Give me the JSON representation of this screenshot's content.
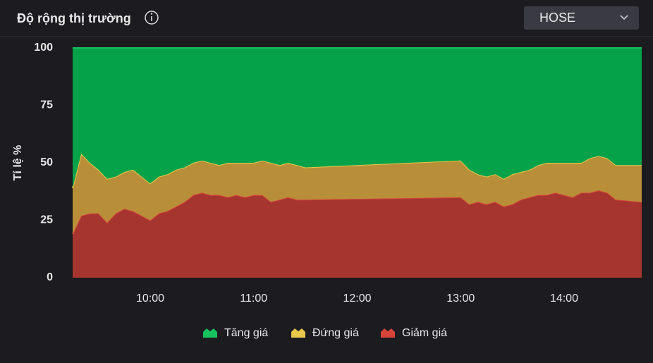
{
  "header": {
    "title": "Độ rộng thị trường",
    "exchange": "HOSE"
  },
  "chart_data": {
    "type": "stacked_area",
    "y_label": "Tỉ lệ %",
    "grid": false,
    "x": [
      "09:15",
      "09:20",
      "09:25",
      "09:30",
      "09:35",
      "09:40",
      "09:45",
      "09:50",
      "09:55",
      "10:00",
      "10:05",
      "10:10",
      "10:15",
      "10:20",
      "10:25",
      "10:30",
      "10:35",
      "10:40",
      "10:45",
      "10:50",
      "10:55",
      "11:00",
      "11:05",
      "11:10",
      "11:15",
      "11:20",
      "11:25",
      "11:30",
      "13:00",
      "13:05",
      "13:10",
      "13:15",
      "13:20",
      "13:25",
      "13:30",
      "13:35",
      "13:40",
      "13:45",
      "13:50",
      "13:55",
      "14:00",
      "14:05",
      "14:10",
      "14:15",
      "14:20",
      "14:25",
      "14:30",
      "14:45"
    ],
    "xlim": [
      "09:15",
      "14:45"
    ],
    "xticks": [
      "10:00",
      "11:00",
      "12:00",
      "13:00",
      "14:00"
    ],
    "ylim": [
      0,
      100
    ],
    "yticks": [
      0,
      25,
      50,
      75,
      100
    ],
    "series": [
      {
        "name": "Tăng giá",
        "color": "#06a24a",
        "line_color": "#17c25e",
        "values": [
          61,
          46,
          50,
          53,
          57,
          56,
          54,
          53,
          56,
          59,
          56,
          55,
          53,
          52,
          50,
          49,
          50,
          51,
          50,
          50,
          50,
          50,
          49,
          50,
          51,
          50,
          51,
          52,
          49,
          53,
          55,
          56,
          55,
          57,
          55,
          54,
          53,
          51,
          50,
          50,
          50,
          50,
          50,
          48,
          47,
          48,
          51,
          51
        ]
      },
      {
        "name": "Đứng giá",
        "color": "#b88f38",
        "line_color": "#e9c74a",
        "values": [
          20,
          27,
          22,
          19,
          19,
          16,
          16,
          18,
          17,
          16,
          16,
          16,
          16,
          15,
          14,
          14,
          14,
          13,
          15,
          14,
          15,
          14,
          15,
          17,
          15,
          15,
          15,
          14,
          16,
          15,
          12,
          12,
          12,
          12,
          13,
          12,
          12,
          13,
          14,
          13,
          14,
          15,
          13,
          15,
          15,
          15,
          15,
          16
        ]
      },
      {
        "name": "Giảm giá",
        "color": "#a63530",
        "line_color": "#d8443b",
        "values": [
          19,
          27,
          28,
          28,
          24,
          28,
          30,
          29,
          27,
          25,
          28,
          29,
          31,
          33,
          36,
          37,
          36,
          36,
          35,
          36,
          35,
          36,
          36,
          33,
          34,
          35,
          34,
          34,
          35,
          32,
          33,
          32,
          33,
          31,
          32,
          34,
          35,
          36,
          36,
          37,
          36,
          35,
          37,
          37,
          38,
          37,
          34,
          33
        ]
      }
    ]
  }
}
